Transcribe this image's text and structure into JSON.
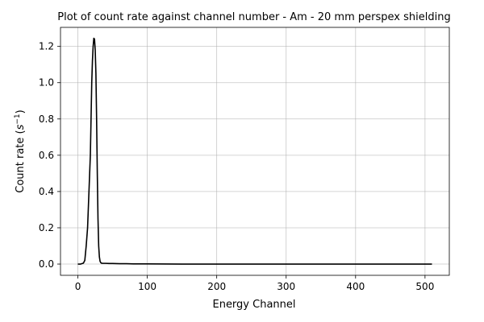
{
  "chart_data": {
    "type": "line",
    "title": "Plot of count rate against channel number - Am - 20 mm perspex shielding",
    "xlabel": "Energy Channel",
    "ylabel": "Count rate",
    "ylabel_unit": "s",
    "ylabel_unit_exp": "−1",
    "xlim": [
      -25,
      535
    ],
    "ylim": [
      -0.062,
      1.305
    ],
    "x_ticks": [
      0,
      100,
      200,
      300,
      400,
      500
    ],
    "x_tick_labels": [
      "0",
      "100",
      "200",
      "300",
      "400",
      "500"
    ],
    "y_ticks": [
      0.0,
      0.2,
      0.4,
      0.6,
      0.8,
      1.0,
      1.2
    ],
    "y_tick_labels": [
      "0.0",
      "0.2",
      "0.4",
      "0.6",
      "0.8",
      "1.0",
      "1.2"
    ],
    "grid": true,
    "series_color": "#000000",
    "x": [
      0,
      4,
      8,
      10,
      12,
      14,
      16,
      18,
      19,
      20,
      21,
      22,
      23,
      24,
      25,
      26,
      27,
      28,
      29,
      30,
      31,
      32,
      33,
      34,
      36,
      40,
      45,
      50,
      60,
      70,
      80,
      90,
      100,
      150,
      200,
      250,
      300,
      350,
      400,
      450,
      500,
      510
    ],
    "y": [
      0.0,
      0.0,
      0.005,
      0.02,
      0.1,
      0.2,
      0.4,
      0.6,
      0.8,
      1.0,
      1.12,
      1.2,
      1.245,
      1.24,
      1.18,
      1.05,
      0.8,
      0.5,
      0.25,
      0.1,
      0.04,
      0.015,
      0.008,
      0.005,
      0.004,
      0.004,
      0.003,
      0.003,
      0.002,
      0.002,
      0.001,
      0.001,
      0.001,
      0.0,
      0.0,
      0.0,
      0.0,
      0.0,
      0.0,
      0.0,
      0.0,
      0.0
    ]
  }
}
